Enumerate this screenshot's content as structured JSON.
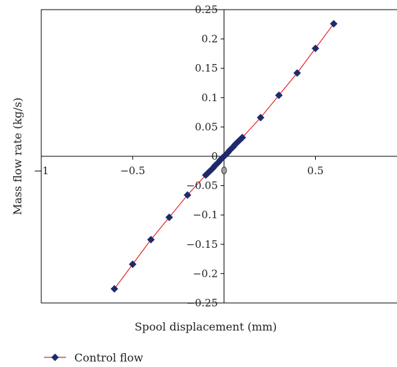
{
  "chart_data": {
    "type": "scatter",
    "xlabel": "Spool displacement (mm)",
    "ylabel": "Mass flow rate (kg/s)",
    "xlim": [
      -1,
      0.95
    ],
    "ylim": [
      -0.25,
      0.25
    ],
    "x_ticks": [
      {
        "value": -1,
        "label": "−1"
      },
      {
        "value": -0.5,
        "label": "−0.5"
      },
      {
        "value": 0,
        "label": "0"
      },
      {
        "value": 0.5,
        "label": "0.5"
      }
    ],
    "y_ticks": [
      {
        "value": 0.25,
        "label": "0.25"
      },
      {
        "value": 0.2,
        "label": "0.2"
      },
      {
        "value": 0.15,
        "label": "0.15"
      },
      {
        "value": 0.1,
        "label": "0.1"
      },
      {
        "value": 0.05,
        "label": "0.05"
      },
      {
        "value": 0,
        "label": "0"
      },
      {
        "value": -0.05,
        "label": "−0.05"
      },
      {
        "value": -0.1,
        "label": "−0.1"
      },
      {
        "value": -0.15,
        "label": "−0.15"
      },
      {
        "value": -0.2,
        "label": "−0.2"
      },
      {
        "value": -0.25,
        "label": "−0.25"
      }
    ],
    "grid": false,
    "legend_position": "bottom-left",
    "series": [
      {
        "name": "Control flow",
        "line_color": "#e8202a",
        "marker_color": "#1f2a6b",
        "marker": "diamond",
        "x": [
          -0.6,
          -0.5,
          -0.4,
          -0.3,
          -0.2,
          -0.1,
          -0.09,
          -0.08,
          -0.07,
          -0.06,
          -0.05,
          -0.04,
          -0.03,
          -0.02,
          -0.01,
          0,
          0.01,
          0.02,
          0.03,
          0.04,
          0.05,
          0.06,
          0.07,
          0.08,
          0.09,
          0.1,
          0.2,
          0.3,
          0.4,
          0.5,
          0.6
        ],
        "y": [
          -0.226,
          -0.184,
          -0.142,
          -0.104,
          -0.066,
          -0.032,
          -0.029,
          -0.026,
          -0.023,
          -0.02,
          -0.016,
          -0.013,
          -0.01,
          -0.006,
          -0.003,
          0,
          0.003,
          0.006,
          0.01,
          0.013,
          0.016,
          0.02,
          0.023,
          0.026,
          0.029,
          0.032,
          0.066,
          0.104,
          0.142,
          0.184,
          0.226
        ]
      }
    ]
  }
}
